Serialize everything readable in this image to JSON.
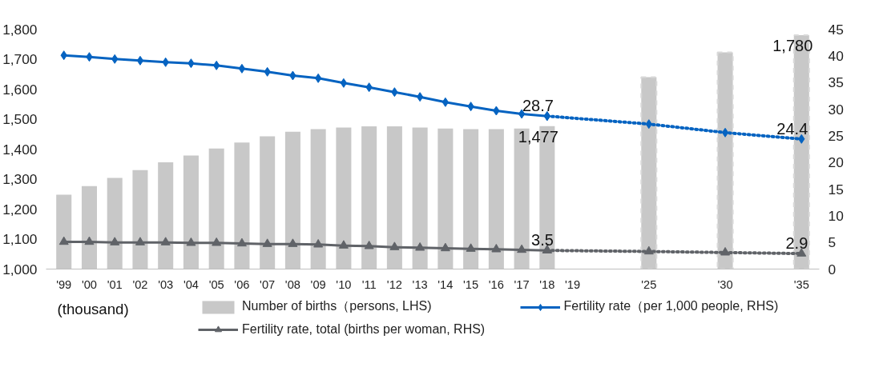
{
  "chart_data": {
    "type": "bar",
    "categories": [
      "'99",
      "'00",
      "'01",
      "'02",
      "'03",
      "'04",
      "'05",
      "'06",
      "'07",
      "'08",
      "'09",
      "'10",
      "'11",
      "'12",
      "'13",
      "'14",
      "'15",
      "'16",
      "'17",
      "'18",
      "'19",
      null,
      null,
      "'25",
      null,
      null,
      "'30",
      null,
      null,
      "'35"
    ],
    "series": [
      {
        "name": "Number of births（persons, LHS)",
        "color": "#c8c8c8",
        "values": [
          1248,
          1277,
          1304,
          1330,
          1356,
          1379,
          1402,
          1422,
          1443,
          1458,
          1467,
          1472,
          1476,
          1476,
          1472,
          1469,
          1467,
          1467,
          1469,
          1477,
          null,
          null,
          null,
          null,
          null,
          null,
          null,
          null,
          null,
          null
        ],
        "value_labels": [
          null,
          null,
          null,
          null,
          null,
          null,
          null,
          null,
          null,
          null,
          null,
          null,
          null,
          null,
          null,
          null,
          null,
          null,
          null,
          "1,477",
          null,
          null,
          null,
          null,
          null,
          null,
          null,
          null,
          null,
          null
        ]
      },
      {
        "color": "#c8c8c8",
        "line_style": "dashed",
        "values": [
          null,
          null,
          null,
          null,
          null,
          null,
          null,
          null,
          null,
          null,
          null,
          null,
          null,
          null,
          null,
          null,
          null,
          null,
          null,
          null,
          null,
          null,
          null,
          1640,
          null,
          null,
          1723,
          null,
          null,
          1780
        ],
        "value_labels": [
          null,
          null,
          null,
          null,
          null,
          null,
          null,
          null,
          null,
          null,
          null,
          null,
          null,
          null,
          null,
          null,
          null,
          null,
          null,
          null,
          null,
          null,
          null,
          null,
          null,
          null,
          null,
          null,
          null,
          "1,780"
        ]
      },
      {
        "name": "Fertility rate（per 1,000 people, RHS)",
        "type": "line",
        "axis": "y2",
        "color": "#0563c1",
        "marker": "diamond",
        "line_style": "solid",
        "x": [
          "'99",
          "'00",
          "'01",
          "'02",
          "'03",
          "'04",
          "'05",
          "'06",
          "'07",
          "'08",
          "'09",
          "'10",
          "'11",
          "'12",
          "'13",
          "'14",
          "'15",
          "'16",
          "'17",
          "'18"
        ],
        "values": [
          40.1,
          39.8,
          39.4,
          39.1,
          38.8,
          38.6,
          38.2,
          37.6,
          37.0,
          36.3,
          35.8,
          34.9,
          34.1,
          33.2,
          32.3,
          31.3,
          30.5,
          29.7,
          29.1,
          28.7
        ],
        "value_labels": [
          null,
          null,
          null,
          null,
          null,
          null,
          null,
          null,
          null,
          null,
          null,
          null,
          null,
          null,
          null,
          null,
          null,
          null,
          null,
          "28.7"
        ]
      },
      {
        "type": "line",
        "axis": "y2",
        "color": "#0563c1",
        "marker": "diamond",
        "line_style": "dotted",
        "x": [
          "'18",
          "'25",
          "'30",
          "'35"
        ],
        "values": [
          28.7,
          27.2,
          25.6,
          24.4
        ],
        "value_labels": [
          null,
          null,
          null,
          "24.4"
        ]
      },
      {
        "name": "Fertility rate, total (births per woman, RHS)",
        "type": "line",
        "axis": "y2",
        "color": "#606368",
        "marker": "triangle",
        "line_style": "solid",
        "x": [
          "'99",
          "'00",
          "'01",
          "'02",
          "'03",
          "'04",
          "'05",
          "'06",
          "'07",
          "'08",
          "'09",
          "'10",
          "'11",
          "'12",
          "'13",
          "'14",
          "'15",
          "'16",
          "'17",
          "'18"
        ],
        "values": [
          5.1,
          5.1,
          5.0,
          5.0,
          5.0,
          4.9,
          4.9,
          4.8,
          4.7,
          4.7,
          4.6,
          4.4,
          4.3,
          4.1,
          4.0,
          3.9,
          3.8,
          3.7,
          3.6,
          3.5
        ],
        "value_labels": [
          null,
          null,
          null,
          null,
          null,
          null,
          null,
          null,
          null,
          null,
          null,
          null,
          null,
          null,
          null,
          null,
          null,
          null,
          null,
          "3.5"
        ]
      },
      {
        "type": "line",
        "axis": "y2",
        "color": "#606368",
        "marker": "triangle",
        "line_style": "dotted",
        "x": [
          "'18",
          "'25",
          "'30",
          "'35"
        ],
        "values": [
          3.5,
          3.3,
          3.1,
          2.9
        ],
        "value_labels": [
          null,
          null,
          null,
          "2.9"
        ]
      }
    ],
    "ylim": [
      1000,
      1800
    ],
    "yticks": [
      {
        "value": 1000,
        "label": "1,000"
      },
      {
        "value": 1100,
        "label": "1,100"
      },
      {
        "value": 1200,
        "label": "1,200"
      },
      {
        "value": 1300,
        "label": "1,300"
      },
      {
        "value": 1400,
        "label": "1,400"
      },
      {
        "value": 1500,
        "label": "1,500"
      },
      {
        "value": 1600,
        "label": "1,600"
      },
      {
        "value": 1700,
        "label": "1,700"
      },
      {
        "value": 1800,
        "label": "1,800"
      }
    ],
    "y2lim": [
      0,
      45
    ],
    "y2ticks": [
      0,
      5,
      10,
      15,
      20,
      25,
      30,
      35,
      40,
      45
    ],
    "annotations": [
      "(thousand)"
    ],
    "legend": "bottom",
    "grid": false
  }
}
